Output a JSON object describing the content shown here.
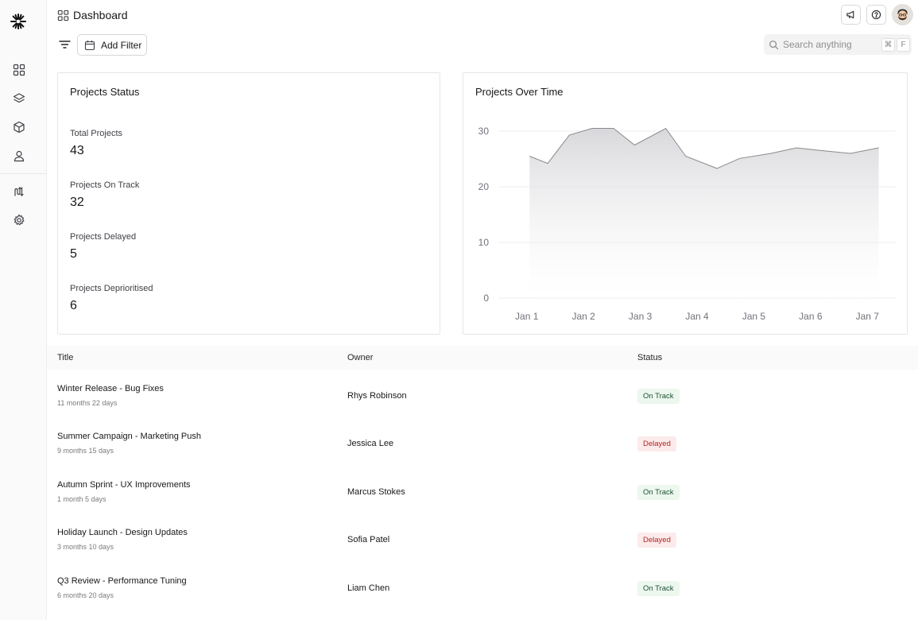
{
  "header": {
    "title": "Dashboard"
  },
  "toolbar": {
    "add_filter_label": "Add Filter"
  },
  "search": {
    "placeholder": "Search anything",
    "kbd_cmd": "⌘",
    "kbd_key": "F"
  },
  "sidebar": {
    "items": [
      {
        "name": "dashboard",
        "icon": "grid-icon"
      },
      {
        "name": "layers",
        "icon": "layers-icon"
      },
      {
        "name": "products",
        "icon": "box-icon"
      },
      {
        "name": "users",
        "icon": "user-icon"
      },
      {
        "name": "integrations",
        "icon": "route-icon"
      },
      {
        "name": "settings",
        "icon": "gear-icon"
      }
    ]
  },
  "status_card": {
    "title": "Projects Status",
    "stats": [
      {
        "label": "Total Projects",
        "value": "43"
      },
      {
        "label": "Projects On Track",
        "value": "32"
      },
      {
        "label": "Projects Delayed",
        "value": "5"
      },
      {
        "label": "Projects Deprioritised",
        "value": "6"
      }
    ]
  },
  "chart_card": {
    "title": "Projects Over Time"
  },
  "chart_data": {
    "type": "area",
    "title": "Projects Over Time",
    "categories": [
      "Jan 1",
      "Jan 2",
      "Jan 3",
      "Jan 4",
      "Jan 5",
      "Jan 6",
      "Jan 7"
    ],
    "x": [
      0.55,
      0.87,
      1.25,
      1.65,
      2.03,
      2.4,
      2.95,
      3.3,
      3.85,
      4.25,
      4.8,
      5.25,
      5.7,
      6.2,
      6.7
    ],
    "values": [
      25.5,
      24.2,
      29.3,
      30.5,
      30.5,
      27.5,
      30.5,
      25.5,
      23.3,
      25.1,
      26.0,
      27.0,
      26.5,
      26.0,
      27.0
    ],
    "yticks": [
      0,
      10,
      20,
      30
    ],
    "ylim": [
      0,
      30
    ],
    "xlabel": "",
    "ylabel": "",
    "grid": true,
    "line_color": "#8a8a8a",
    "fill_color": "#d4d4d8"
  },
  "table": {
    "columns": {
      "title": "Title",
      "owner": "Owner",
      "status": "Status"
    },
    "rows": [
      {
        "title": "Winter Release - Bug Fixes",
        "duration": "11 months 22 days",
        "owner": "Rhys Robinson",
        "status": "On Track"
      },
      {
        "title": "Summer Campaign - Marketing Push",
        "duration": "9 months 15 days",
        "owner": "Jessica Lee",
        "status": "Delayed"
      },
      {
        "title": "Autumn Sprint - UX Improvements",
        "duration": "1 month 5 days",
        "owner": "Marcus Stokes",
        "status": "On Track"
      },
      {
        "title": "Holiday Launch - Design Updates",
        "duration": "3 months 10 days",
        "owner": "Sofia Patel",
        "status": "Delayed"
      },
      {
        "title": "Q3 Review - Performance Tuning",
        "duration": "6 months 20 days",
        "owner": "Liam Chen",
        "status": "On Track"
      }
    ]
  }
}
